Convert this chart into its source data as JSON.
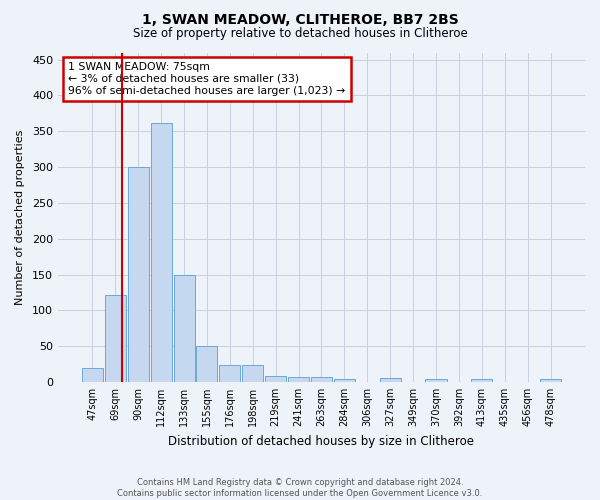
{
  "title": "1, SWAN MEADOW, CLITHEROE, BB7 2BS",
  "subtitle": "Size of property relative to detached houses in Clitheroe",
  "xlabel": "Distribution of detached houses by size in Clitheroe",
  "ylabel": "Number of detached properties",
  "footer_line1": "Contains HM Land Registry data © Crown copyright and database right 2024.",
  "footer_line2": "Contains public sector information licensed under the Open Government Licence v3.0.",
  "bins": [
    "47sqm",
    "69sqm",
    "90sqm",
    "112sqm",
    "133sqm",
    "155sqm",
    "176sqm",
    "198sqm",
    "219sqm",
    "241sqm",
    "263sqm",
    "284sqm",
    "306sqm",
    "327sqm",
    "349sqm",
    "370sqm",
    "392sqm",
    "413sqm",
    "435sqm",
    "456sqm",
    "478sqm"
  ],
  "bar_heights": [
    20,
    122,
    300,
    362,
    150,
    50,
    24,
    24,
    8,
    7,
    7,
    4,
    0,
    6,
    0,
    4,
    0,
    4,
    0,
    0,
    4
  ],
  "bar_color": "#c5d8f0",
  "bar_edge_color": "#5a9fd4",
  "ylim": [
    0,
    460
  ],
  "yticks": [
    0,
    50,
    100,
    150,
    200,
    250,
    300,
    350,
    400,
    450
  ],
  "vline_x": 1.27,
  "vline_color": "#cc0000",
  "annotation_text": "1 SWAN MEADOW: 75sqm\n← 3% of detached houses are smaller (33)\n96% of semi-detached houses are larger (1,023) →",
  "annotation_box_color": "#cc0000",
  "bg_color": "#eef2f9",
  "grid_color": "#c8d0e0"
}
